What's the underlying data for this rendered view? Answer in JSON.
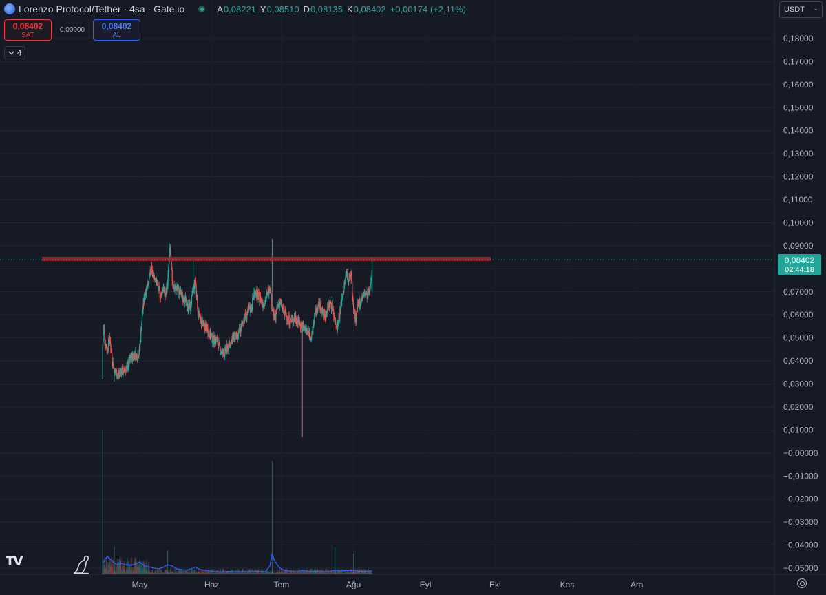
{
  "header": {
    "title": "Lorenzo Protocol/Tether · 4sa · Gate.io",
    "ohlc": [
      {
        "k": "A",
        "v": "0,08221"
      },
      {
        "k": "Y",
        "v": "0,08510"
      },
      {
        "k": "D",
        "v": "0,08135"
      },
      {
        "k": "K",
        "v": "0,08402"
      },
      {
        "k": "",
        "v": "+0,00174 (+2,11%)"
      }
    ]
  },
  "trade": {
    "sell_price": "0,08402",
    "sell_label": "SAT",
    "spread": "0,00000",
    "buy_price": "0,08402",
    "buy_label": "AL"
  },
  "indicators": {
    "count": "4"
  },
  "currency": "USDT",
  "price_tag": {
    "price": "0,08402",
    "countdown": "02:44:18"
  },
  "colors": {
    "up": "#26a69a",
    "down": "#ef5350",
    "volume_ma": "#2962ff",
    "resistance": "#b2282c"
  },
  "chart_data": {
    "type": "candlestick",
    "title": "Lorenzo Protocol/Tether · 4sa · Gate.io",
    "x_months": [
      {
        "label": "May",
        "day": 16
      },
      {
        "label": "Haz",
        "day": 47
      },
      {
        "label": "Tem",
        "day": 77
      },
      {
        "label": "Ağu",
        "day": 108
      },
      {
        "label": "Eyl",
        "day": 139
      },
      {
        "label": "Eki",
        "day": 169
      },
      {
        "label": "Kas",
        "day": 200
      },
      {
        "label": "Ara",
        "day": 230
      }
    ],
    "y_ticks": [
      "0,18000",
      "0,17000",
      "0,16000",
      "0,15000",
      "0,14000",
      "0,13000",
      "0,12000",
      "0,11000",
      "0,10000",
      "0,09000",
      "0,08000",
      "0,07000",
      "0,06000",
      "0,05000",
      "0,04000",
      "0,03000",
      "0,02000",
      "0,01000",
      "−0,00000",
      "−0,01000",
      "−0,02000",
      "−0,03000",
      "−0,04000",
      "−0,05000"
    ],
    "y_tick_values": [
      0.18,
      0.17,
      0.16,
      0.15,
      0.14,
      0.13,
      0.12,
      0.11,
      0.1,
      0.09,
      0.08,
      0.07,
      0.06,
      0.05,
      0.04,
      0.03,
      0.02,
      0.01,
      0,
      -0.01,
      -0.02,
      -0.03,
      -0.04,
      -0.05
    ],
    "last_price": 0.08402,
    "resistance_level": 0.0843,
    "resistance_range_days": [
      0,
      150
    ],
    "price_path": [
      [
        0,
        0.046
      ],
      [
        0.5,
        0.055
      ],
      [
        1,
        0.048
      ],
      [
        2,
        0.045
      ],
      [
        3,
        0.05
      ],
      [
        4,
        0.042
      ],
      [
        5,
        0.036
      ],
      [
        6,
        0.034
      ],
      [
        7,
        0.034
      ],
      [
        8,
        0.036
      ],
      [
        9,
        0.035
      ],
      [
        10,
        0.037
      ],
      [
        11,
        0.038
      ],
      [
        12,
        0.041
      ],
      [
        13,
        0.042
      ],
      [
        14,
        0.043
      ],
      [
        15,
        0.042
      ],
      [
        16,
        0.045
      ],
      [
        17,
        0.06
      ],
      [
        18,
        0.068
      ],
      [
        19,
        0.072
      ],
      [
        20,
        0.076
      ],
      [
        21,
        0.079
      ],
      [
        22,
        0.078
      ],
      [
        23,
        0.075
      ],
      [
        24,
        0.071
      ],
      [
        25,
        0.068
      ],
      [
        26,
        0.072
      ],
      [
        27,
        0.068
      ],
      [
        28,
        0.074
      ],
      [
        29,
        0.089
      ],
      [
        30,
        0.075
      ],
      [
        31,
        0.071
      ],
      [
        32,
        0.072
      ],
      [
        33,
        0.07
      ],
      [
        34,
        0.069
      ],
      [
        35,
        0.067
      ],
      [
        36,
        0.065
      ],
      [
        37,
        0.063
      ],
      [
        38,
        0.064
      ],
      [
        39,
        0.071
      ],
      [
        40,
        0.075
      ],
      [
        41,
        0.062
      ],
      [
        42,
        0.058
      ],
      [
        43,
        0.056
      ],
      [
        44,
        0.055
      ],
      [
        45,
        0.054
      ],
      [
        46,
        0.052
      ],
      [
        47,
        0.05
      ],
      [
        48,
        0.049
      ],
      [
        49,
        0.049
      ],
      [
        50,
        0.047
      ],
      [
        51,
        0.044
      ],
      [
        52,
        0.043
      ],
      [
        53,
        0.044
      ],
      [
        54,
        0.046
      ],
      [
        55,
        0.048
      ],
      [
        56,
        0.05
      ],
      [
        57,
        0.051
      ],
      [
        58,
        0.05
      ],
      [
        59,
        0.053
      ],
      [
        60,
        0.055
      ],
      [
        61,
        0.059
      ],
      [
        62,
        0.06
      ],
      [
        63,
        0.062
      ],
      [
        64,
        0.063
      ],
      [
        65,
        0.069
      ],
      [
        66,
        0.07
      ],
      [
        67,
        0.068
      ],
      [
        68,
        0.067
      ],
      [
        69,
        0.065
      ],
      [
        70,
        0.066
      ],
      [
        71,
        0.069
      ],
      [
        72,
        0.073
      ],
      [
        73,
        0.063
      ],
      [
        74,
        0.058
      ],
      [
        75,
        0.062
      ],
      [
        76,
        0.066
      ],
      [
        77,
        0.064
      ],
      [
        78,
        0.061
      ],
      [
        79,
        0.06
      ],
      [
        80,
        0.058
      ],
      [
        81,
        0.057
      ],
      [
        82,
        0.058
      ],
      [
        83,
        0.059
      ],
      [
        84,
        0.057
      ],
      [
        85,
        0.056
      ],
      [
        86,
        0.055
      ],
      [
        87,
        0.054
      ],
      [
        88,
        0.053
      ],
      [
        89,
        0.052
      ],
      [
        90,
        0.05
      ],
      [
        91,
        0.058
      ],
      [
        92,
        0.062
      ],
      [
        93,
        0.064
      ],
      [
        94,
        0.063
      ],
      [
        95,
        0.061
      ],
      [
        96,
        0.059
      ],
      [
        97,
        0.064
      ],
      [
        98,
        0.065
      ],
      [
        99,
        0.064
      ],
      [
        100,
        0.057
      ],
      [
        101,
        0.055
      ],
      [
        102,
        0.06
      ],
      [
        103,
        0.067
      ],
      [
        104,
        0.072
      ],
      [
        105,
        0.079
      ],
      [
        106,
        0.075
      ],
      [
        107,
        0.078
      ],
      [
        108,
        0.062
      ],
      [
        109,
        0.058
      ],
      [
        110,
        0.064
      ],
      [
        111,
        0.066
      ],
      [
        112,
        0.068
      ],
      [
        113,
        0.069
      ],
      [
        114,
        0.068
      ],
      [
        115,
        0.07
      ],
      [
        116,
        0.081
      ]
    ],
    "wick_highs": [
      [
        29,
        0.091
      ],
      [
        39,
        0.084
      ],
      [
        73,
        0.093
      ]
    ],
    "wick_lows": [
      [
        0,
        0.032
      ],
      [
        5,
        0.031
      ],
      [
        86,
        0.007
      ]
    ],
    "volume_ma": [
      [
        0,
        0.35
      ],
      [
        2,
        0.6
      ],
      [
        4,
        0.45
      ],
      [
        6,
        0.3
      ],
      [
        8,
        0.35
      ],
      [
        10,
        0.3
      ],
      [
        12,
        0.28
      ],
      [
        14,
        0.32
      ],
      [
        16,
        0.4
      ],
      [
        18,
        0.25
      ],
      [
        20,
        0.22
      ],
      [
        22,
        0.18
      ],
      [
        24,
        0.15
      ],
      [
        26,
        0.2
      ],
      [
        28,
        0.3
      ],
      [
        30,
        0.25
      ],
      [
        32,
        0.15
      ],
      [
        34,
        0.12
      ],
      [
        36,
        0.1
      ],
      [
        38,
        0.14
      ],
      [
        40,
        0.22
      ],
      [
        42,
        0.12
      ],
      [
        44,
        0.1
      ],
      [
        46,
        0.08
      ],
      [
        48,
        0.06
      ],
      [
        50,
        0.05
      ],
      [
        52,
        0.05
      ],
      [
        54,
        0.06
      ],
      [
        56,
        0.05
      ],
      [
        58,
        0.05
      ],
      [
        60,
        0.06
      ],
      [
        62,
        0.05
      ],
      [
        64,
        0.06
      ],
      [
        66,
        0.07
      ],
      [
        68,
        0.06
      ],
      [
        70,
        0.05
      ],
      [
        72,
        0.25
      ],
      [
        73,
        0.7
      ],
      [
        74,
        0.45
      ],
      [
        76,
        0.2
      ],
      [
        78,
        0.1
      ],
      [
        80,
        0.08
      ],
      [
        82,
        0.06
      ],
      [
        84,
        0.05
      ],
      [
        86,
        0.1
      ],
      [
        88,
        0.07
      ],
      [
        90,
        0.06
      ],
      [
        92,
        0.07
      ],
      [
        94,
        0.06
      ],
      [
        96,
        0.05
      ],
      [
        98,
        0.06
      ],
      [
        100,
        0.1
      ],
      [
        102,
        0.07
      ],
      [
        104,
        0.08
      ],
      [
        106,
        0.09
      ],
      [
        108,
        0.1
      ],
      [
        110,
        0.07
      ],
      [
        112,
        0.06
      ],
      [
        114,
        0.07
      ],
      [
        116,
        0.08
      ]
    ]
  }
}
